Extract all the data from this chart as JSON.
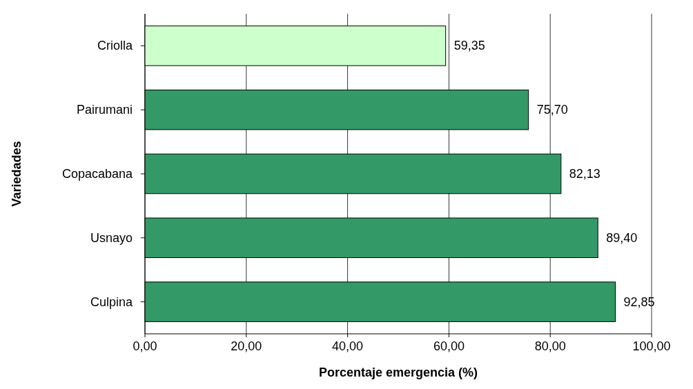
{
  "chart_data": {
    "type": "bar",
    "orientation": "horizontal",
    "xlabel": "Porcentaje emergencia (%)",
    "ylabel": "Variedades",
    "categories": [
      "Criolla",
      "Pairumani",
      "Copacabana",
      "Usnayo",
      "Culpina"
    ],
    "values": [
      59.35,
      75.7,
      82.13,
      89.4,
      92.85
    ],
    "colors": [
      "#ccffcc",
      "#339966",
      "#339966",
      "#339966",
      "#339966"
    ],
    "value_labels": [
      "59,35",
      "75,70",
      "82,13",
      "89,40",
      "92,85"
    ],
    "xlim": [
      0,
      100
    ],
    "xticks": [
      {
        "value": 0,
        "label": "0,00"
      },
      {
        "value": 20,
        "label": "20,00"
      },
      {
        "value": 40,
        "label": "40,00"
      },
      {
        "value": 60,
        "label": "60,00"
      },
      {
        "value": 80,
        "label": "80,00"
      },
      {
        "value": 100,
        "label": "100,00"
      }
    ],
    "grid": "x"
  }
}
